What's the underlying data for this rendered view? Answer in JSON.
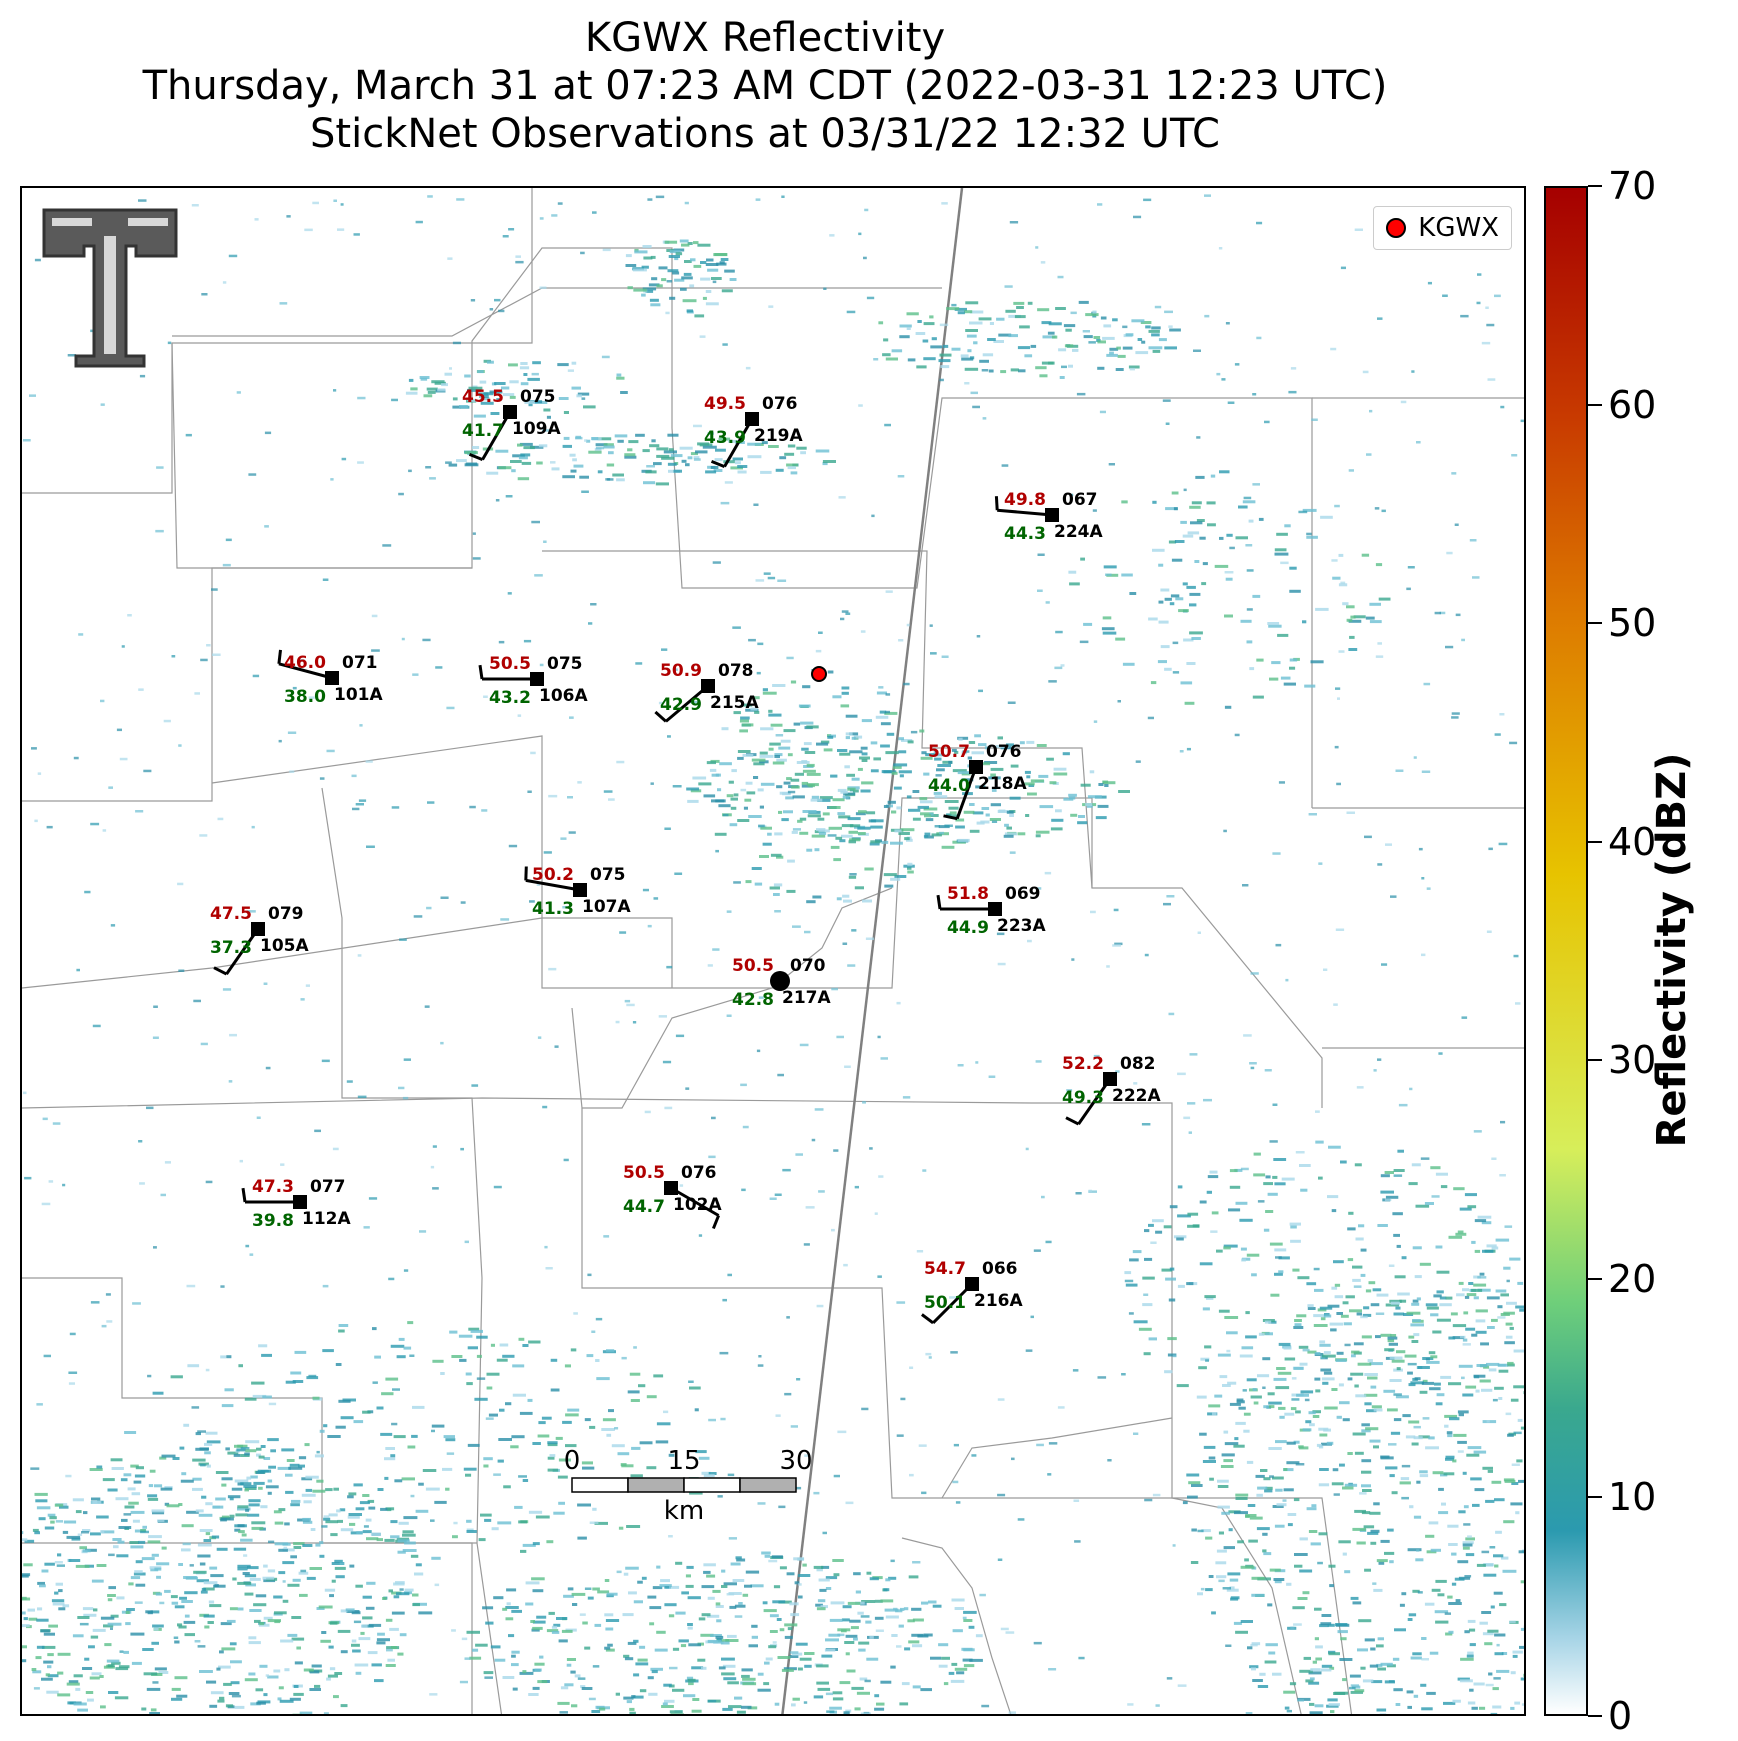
{
  "title": {
    "line1": "KGWX Reflectivity",
    "line2": "Thursday, March 31 at 07:23 AM CDT (2022-03-31 12:23 UTC)",
    "line3": "StickNet Observations at 03/31/22 12:32 UTC"
  },
  "legend": {
    "label": "KGWX",
    "marker_color": "#ff0000"
  },
  "colorbar": {
    "label": "Reflectivity (dBZ)",
    "ticks": [
      "0",
      "10",
      "20",
      "30",
      "40",
      "50",
      "60",
      "70"
    ],
    "range": [
      0,
      70
    ]
  },
  "scalebar": {
    "labels": [
      "0",
      "15",
      "30"
    ],
    "unit": "km"
  },
  "stations": [
    {
      "id": "109A",
      "temp": "45.5",
      "dew": "41.7",
      "dir": "075"
    },
    {
      "id": "219A",
      "temp": "49.5",
      "dew": "43.9",
      "dir": "076"
    },
    {
      "id": "224A",
      "temp": "49.8",
      "dew": "44.3",
      "dir": "067"
    },
    {
      "id": "101A",
      "temp": "46.0",
      "dew": "38.0",
      "dir": "071"
    },
    {
      "id": "106A",
      "temp": "50.5",
      "dew": "43.2",
      "dir": "075"
    },
    {
      "id": "215A",
      "temp": "50.9",
      "dew": "42.9",
      "dir": "078"
    },
    {
      "id": "218A",
      "temp": "50.7",
      "dew": "44.0",
      "dir": "076"
    },
    {
      "id": "107A",
      "temp": "50.2",
      "dew": "41.3",
      "dir": "075"
    },
    {
      "id": "223A",
      "temp": "51.8",
      "dew": "44.9",
      "dir": "069"
    },
    {
      "id": "105A",
      "temp": "47.5",
      "dew": "37.3",
      "dir": "079"
    },
    {
      "id": "217A",
      "temp": "50.5",
      "dew": "42.8",
      "dir": "070"
    },
    {
      "id": "222A",
      "temp": "52.2",
      "dew": "49.3",
      "dir": "082"
    },
    {
      "id": "112A",
      "temp": "47.3",
      "dew": "39.8",
      "dir": "077"
    },
    {
      "id": "102A",
      "temp": "50.5",
      "dew": "44.7",
      "dir": "076"
    },
    {
      "id": "216A",
      "temp": "54.7",
      "dew": "50.1",
      "dir": "066"
    }
  ]
}
